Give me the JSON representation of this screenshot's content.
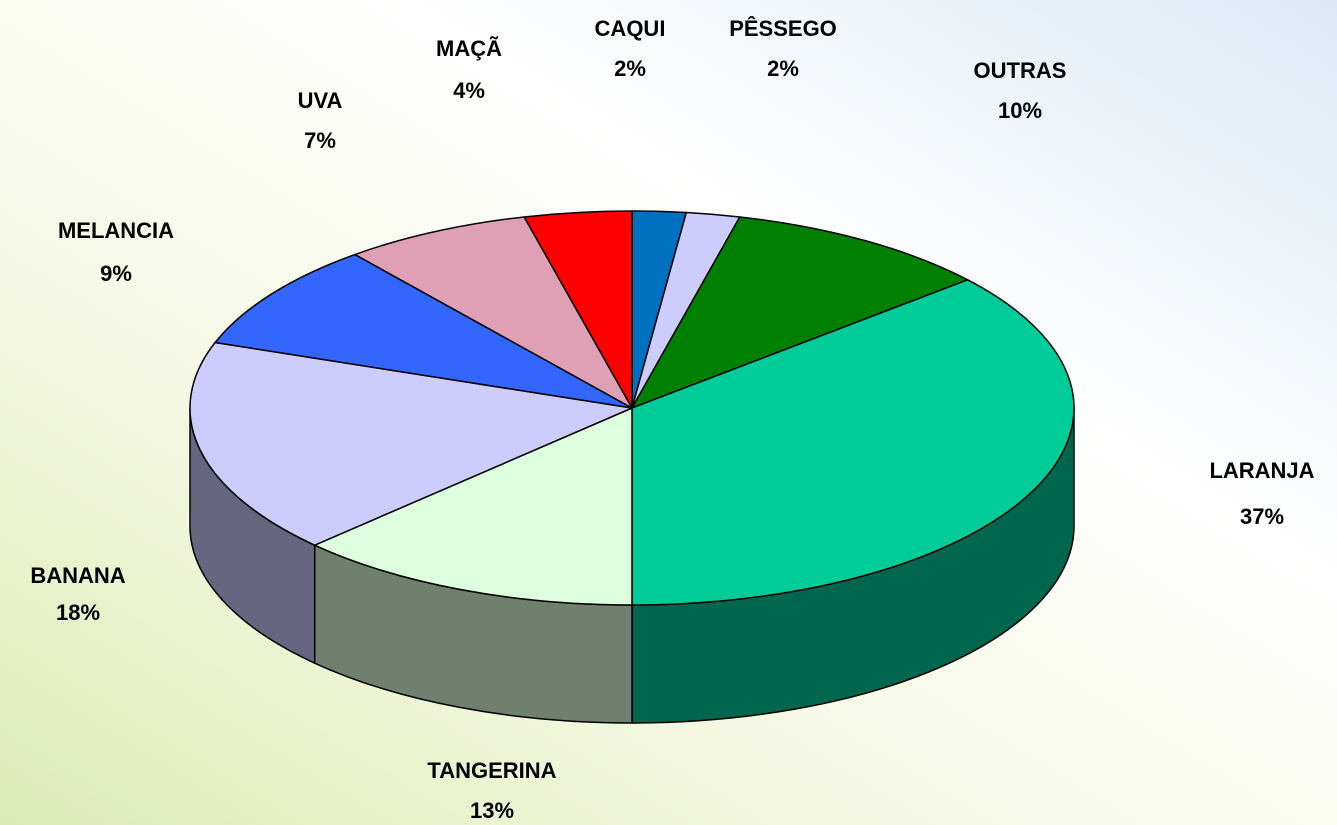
{
  "chart_data": {
    "type": "pie",
    "categories": [
      "CAQUI",
      "PÊSSEGO",
      "OUTRAS",
      "LARANJA",
      "TANGERINA",
      "BANANA",
      "MELANCIA",
      "UVA",
      "MAÇÃ"
    ],
    "values": [
      2,
      2,
      10,
      37,
      13,
      18,
      9,
      7,
      4
    ],
    "value_labels": [
      "2%",
      "2%",
      "10%",
      "37%",
      "13%",
      "18%",
      "9%",
      "7%",
      "4%"
    ],
    "colors": [
      "#0070c0",
      "#ccccff",
      "#008000",
      "#00cc99",
      "#ddffdd",
      "#ccccff",
      "#3366ff",
      "#df9fb5",
      "#ff0000"
    ]
  }
}
